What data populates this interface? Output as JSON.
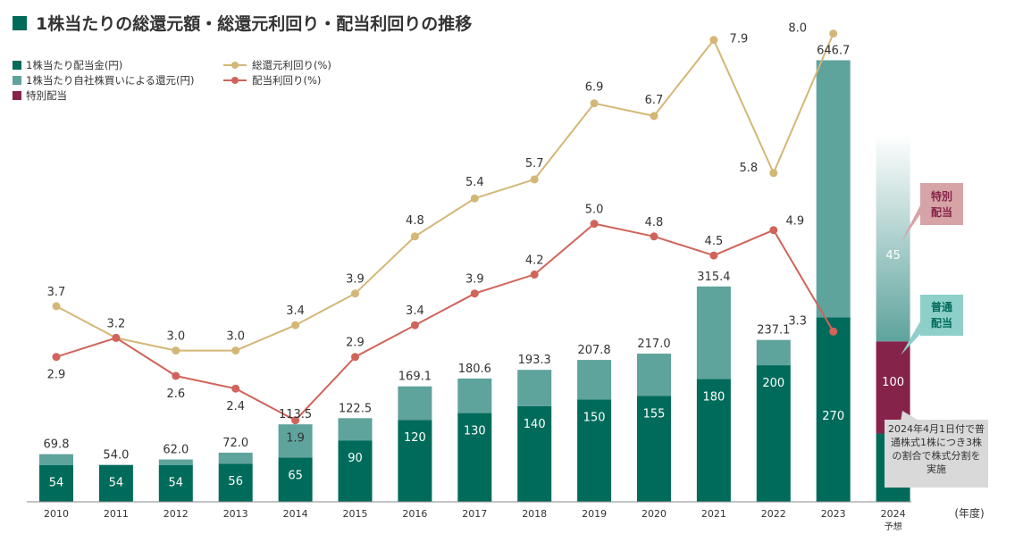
{
  "title": "1株当たりの総還元額・総還元利回り・配当利回りの推移",
  "legend": {
    "dividend": "1株当たり配当金(円)",
    "buyback": "1株当たり自社株買いによる還元(円)",
    "special": "特別配当",
    "total_yield": "総還元利回り(%)",
    "div_yield": "配当利回り(%)"
  },
  "colors": {
    "dividend": "#006b5a",
    "buyback": "#5fa39d",
    "special": "#85234a",
    "total_yield": "#d4b777",
    "div_yield": "#d0645a",
    "title_square": "#006b5a"
  },
  "chart_data": {
    "type": "bar",
    "title": "1株当たりの総還元額・総還元利回り・配当利回りの推移",
    "xlabel": "(年度)",
    "categories": [
      "2010",
      "2011",
      "2012",
      "2013",
      "2014",
      "2015",
      "2016",
      "2017",
      "2018",
      "2019",
      "2020",
      "2021",
      "2022",
      "2023",
      "2024"
    ],
    "forecast_label": "予想",
    "series": [
      {
        "name": "1株当たり配当金(円)",
        "values": [
          54,
          54,
          54,
          56,
          65,
          90,
          120,
          130,
          140,
          150,
          155,
          180,
          200,
          270,
          100
        ]
      },
      {
        "name": "1株当たり自社株買いによる還元(円)",
        "values": [
          15.8,
          0,
          8.0,
          16.0,
          48.5,
          32.5,
          49.1,
          50.6,
          53.3,
          57.8,
          62.0,
          135.4,
          37.1,
          376.7,
          null
        ]
      },
      {
        "name": "特別配当",
        "values": [
          null,
          null,
          null,
          null,
          null,
          null,
          null,
          null,
          null,
          null,
          null,
          null,
          null,
          null,
          45
        ]
      }
    ],
    "totals": [
      "69.8",
      "54.0",
      "62.0",
      "72.0",
      "113.5",
      "122.5",
      "169.1",
      "180.6",
      "193.3",
      "207.8",
      "217.0",
      "315.4",
      "237.1",
      "646.7",
      null
    ],
    "dividend_labels": [
      "54",
      "54",
      "54",
      "56",
      "65",
      "90",
      "120",
      "130",
      "140",
      "150",
      "155",
      "180",
      "200",
      "270",
      "100"
    ],
    "special_label": "45",
    "lines": [
      {
        "name": "総還元利回り(%)",
        "values": [
          3.7,
          3.2,
          3.0,
          3.0,
          3.4,
          3.9,
          4.8,
          5.4,
          5.7,
          6.9,
          6.7,
          7.9,
          5.8,
          8.0
        ],
        "labels": [
          "3.7",
          "3.2",
          "3.0",
          "3.0",
          "3.4",
          "3.9",
          "4.8",
          "5.4",
          "5.7",
          "6.9",
          "6.7",
          "7.9",
          "5.8",
          "8.0"
        ]
      },
      {
        "name": "配当利回り(%)",
        "values": [
          2.9,
          3.2,
          2.6,
          2.4,
          1.9,
          2.9,
          3.4,
          3.9,
          4.2,
          5.0,
          4.8,
          4.5,
          4.9,
          3.3
        ],
        "labels": [
          "2.9",
          "",
          "2.6",
          "2.4",
          "1.9",
          "2.9",
          "3.4",
          "3.9",
          "4.2",
          "5.0",
          "4.8",
          "4.5",
          "4.9",
          "3.3"
        ]
      }
    ]
  },
  "callouts": {
    "special": "特別配当",
    "regular": "普通配当"
  },
  "note": "2024年4月1日付で普通株式1株につき3株の割合で株式分割を実施"
}
